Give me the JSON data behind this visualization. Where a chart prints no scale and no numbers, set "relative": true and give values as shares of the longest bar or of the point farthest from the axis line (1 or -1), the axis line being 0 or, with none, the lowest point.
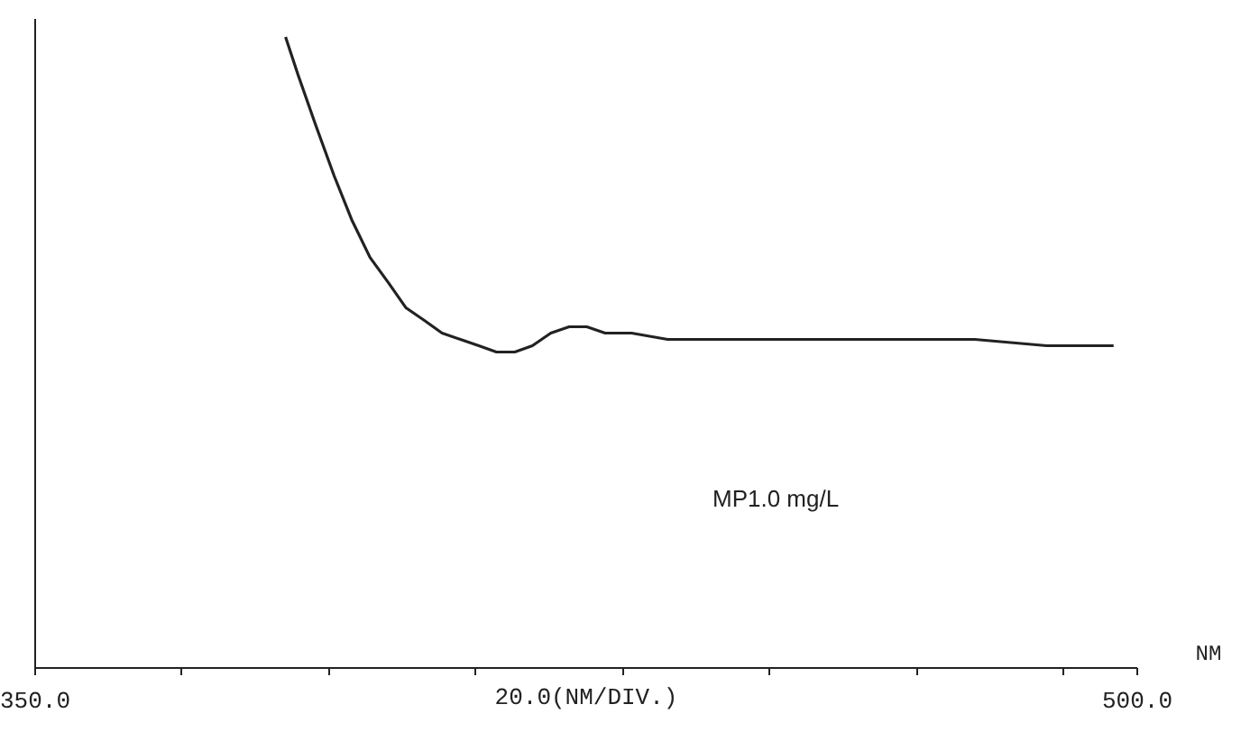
{
  "chart_data": {
    "type": "line",
    "relative": true,
    "xlabel": "20.0(NM/DIV.)",
    "annotations": [
      "MP1.0 mg/L",
      "NM"
    ],
    "xlim": [
      350,
      500
    ],
    "xticks": [
      {
        "value": 350,
        "label": "350.0"
      },
      {
        "value": 370,
        "label": null
      },
      {
        "value": 390,
        "label": null
      },
      {
        "value": 410,
        "label": null
      },
      {
        "value": 430,
        "label": null
      },
      {
        "value": 450,
        "label": null
      },
      {
        "value": 470,
        "label": null
      },
      {
        "value": 490,
        "label": null
      },
      {
        "value": 500,
        "label": "500.0"
      }
    ],
    "grid": false,
    "x": [
      384.2,
      385.9,
      388.3,
      390.8,
      393.2,
      395.7,
      398.2,
      400.6,
      403.1,
      405.5,
      408.0,
      410.5,
      412.9,
      415.4,
      417.8,
      420.3,
      422.8,
      425.2,
      427.7,
      431.3,
      436.2,
      443.6,
      451.0,
      458.4,
      468.2,
      478.0,
      487.8,
      496.9
    ],
    "series": [
      {
        "color": "#222222",
        "values": [
          1.0,
          0.94,
          0.86,
          0.78,
          0.71,
          0.65,
          0.61,
          0.57,
          0.55,
          0.53,
          0.52,
          0.51,
          0.5,
          0.5,
          0.51,
          0.53,
          0.54,
          0.54,
          0.53,
          0.53,
          0.52,
          0.52,
          0.52,
          0.52,
          0.52,
          0.52,
          0.51,
          0.51
        ]
      }
    ]
  }
}
